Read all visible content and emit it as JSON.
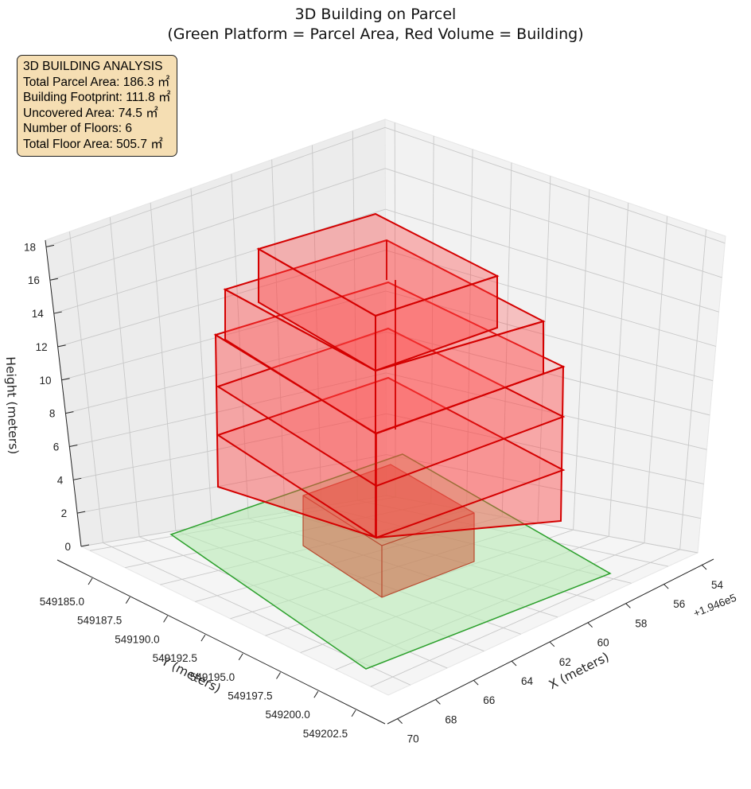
{
  "chart_data": {
    "type": "3d-box",
    "title": "3D Building on Parcel",
    "subtitle": "(Green Platform = Parcel Area, Red Volume = Building)",
    "xlabel": "X (meters)",
    "ylabel": "Y (meters)",
    "zlabel": "Height (meters)",
    "x_offset_label": "+1.946e5",
    "x_ticks": [
      "54",
      "56",
      "58",
      "60",
      "62",
      "64",
      "66",
      "68",
      "70"
    ],
    "y_ticks": [
      "549185.0",
      "549187.5",
      "549190.0",
      "549192.5",
      "549195.0",
      "549197.5",
      "549200.0",
      "549202.5"
    ],
    "z_ticks": [
      "0",
      "2",
      "4",
      "6",
      "8",
      "10",
      "12",
      "14",
      "16",
      "18"
    ],
    "colors": {
      "parcel_fill": "#b9ebb5",
      "parcel_edge": "#2ca02c",
      "building_fill": "#ff4040",
      "building_edge": "#d40000",
      "ground_block": "#cd5c3c"
    },
    "annotation": {
      "heading": "3D BUILDING ANALYSIS",
      "lines": [
        "Total Parcel Area: 186.3 ㎡",
        "Building Footprint: 111.8 ㎡",
        "Uncovered Area: 74.5 ㎡",
        "Number of Floors: 6",
        "Total Floor Area: 505.7 ㎡"
      ]
    },
    "legend": []
  }
}
